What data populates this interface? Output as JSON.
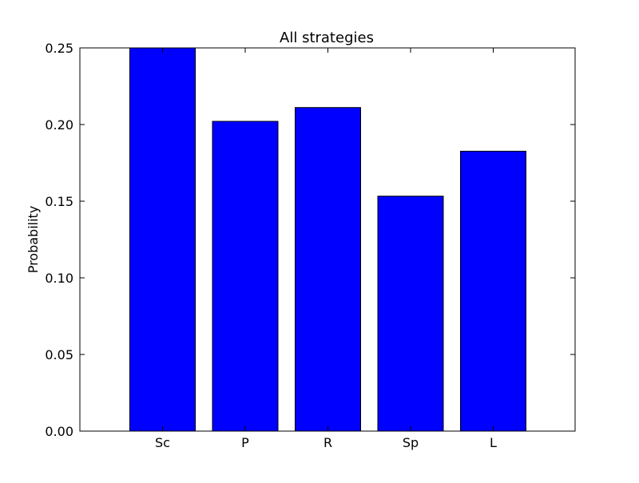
{
  "chart_data": {
    "type": "bar",
    "title": "All strategies",
    "xlabel": "",
    "ylabel": "Probability",
    "categories": [
      "Sc",
      "P",
      "R",
      "Sp",
      "L"
    ],
    "values": [
      0.25,
      0.2021,
      0.2111,
      0.1533,
      0.1826
    ],
    "ylim": [
      0,
      0.25
    ],
    "yticks": [
      0.0,
      0.05,
      0.1,
      0.15,
      0.2,
      0.25
    ],
    "ytick_labels": [
      "0.00",
      "0.05",
      "0.10",
      "0.15",
      "0.20",
      "0.25"
    ],
    "grid": false,
    "legend": "none",
    "colors": {
      "bar_fill": "#0000ff",
      "bar_edge": "#000000",
      "axes": "#000000",
      "background": "#ffffff"
    }
  }
}
